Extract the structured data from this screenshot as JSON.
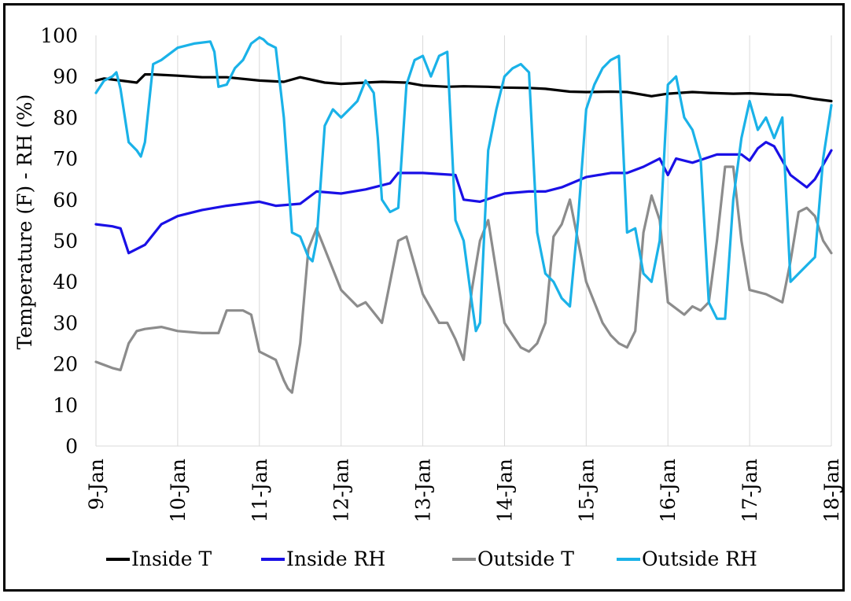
{
  "chart_data": {
    "type": "line",
    "title": "",
    "xlabel": "",
    "ylabel": "Temperature (F) - RH (%)",
    "ylim": [
      0,
      100
    ],
    "yticks": [
      "0",
      "10",
      "20",
      "30",
      "40",
      "50",
      "60",
      "70",
      "80",
      "90",
      "100"
    ],
    "x_tick_labels": [
      "9-Jan",
      "10-Jan",
      "11-Jan",
      "12-Jan",
      "13-Jan",
      "14-Jan",
      "15-Jan",
      "16-Jan",
      "17-Jan",
      "18-Jan"
    ],
    "xlim_days": [
      9,
      18
    ],
    "grid": "vertical",
    "legend": "bottom",
    "series": [
      {
        "name": "Inside T",
        "color": "#000000",
        "x": [
          9.0,
          9.1,
          9.3,
          9.5,
          9.6,
          9.7,
          10.0,
          10.3,
          10.6,
          11.0,
          11.3,
          11.5,
          11.8,
          12.0,
          12.3,
          12.5,
          12.8,
          13.0,
          13.3,
          13.5,
          13.8,
          14.0,
          14.3,
          14.5,
          14.8,
          15.0,
          15.3,
          15.5,
          15.8,
          16.0,
          16.3,
          16.5,
          16.8,
          17.0,
          17.3,
          17.5,
          17.8,
          18.0
        ],
        "y": [
          89,
          89.5,
          89,
          88.5,
          90.5,
          90.5,
          90.2,
          89.8,
          89.8,
          89,
          88.7,
          89.8,
          88.5,
          88.2,
          88.5,
          88.7,
          88.5,
          87.8,
          87.5,
          87.6,
          87.5,
          87.3,
          87.2,
          87.0,
          86.3,
          86.2,
          86.3,
          86.2,
          85.2,
          85.8,
          86.2,
          86.0,
          85.8,
          85.9,
          85.6,
          85.5,
          84.5,
          84.0
        ]
      },
      {
        "name": "Inside RH",
        "color": "#1a10e6",
        "x": [
          9.0,
          9.2,
          9.3,
          9.4,
          9.6,
          9.8,
          10.0,
          10.3,
          10.6,
          11.0,
          11.2,
          11.5,
          11.7,
          12.0,
          12.3,
          12.6,
          12.7,
          12.9,
          13.0,
          13.4,
          13.5,
          13.7,
          14.0,
          14.3,
          14.5,
          14.7,
          15.0,
          15.3,
          15.5,
          15.7,
          15.9,
          16.0,
          16.1,
          16.3,
          16.6,
          16.9,
          17.0,
          17.1,
          17.2,
          17.3,
          17.5,
          17.7,
          17.8,
          18.0
        ],
        "y": [
          54,
          53.5,
          53,
          47,
          49,
          54,
          56,
          57.5,
          58.5,
          59.5,
          58.5,
          59,
          62,
          61.5,
          62.5,
          64,
          66.5,
          66.5,
          66.5,
          66,
          60,
          59.5,
          61.5,
          62,
          62,
          63,
          65.5,
          66.5,
          66.5,
          68,
          70,
          66,
          70,
          69,
          71,
          71,
          69.5,
          72.5,
          74,
          73,
          66,
          63,
          65,
          72
        ]
      },
      {
        "name": "Outside T",
        "color": "#8c8c8c",
        "x": [
          9.0,
          9.2,
          9.3,
          9.4,
          9.5,
          9.6,
          9.8,
          10.0,
          10.3,
          10.5,
          10.6,
          10.8,
          10.9,
          11.0,
          11.2,
          11.3,
          11.35,
          11.4,
          11.5,
          11.6,
          11.7,
          11.8,
          12.0,
          12.2,
          12.3,
          12.5,
          12.6,
          12.7,
          12.8,
          13.0,
          13.2,
          13.3,
          13.4,
          13.5,
          13.6,
          13.7,
          13.8,
          14.0,
          14.2,
          14.3,
          14.4,
          14.5,
          14.6,
          14.7,
          14.8,
          15.0,
          15.2,
          15.3,
          15.4,
          15.5,
          15.6,
          15.7,
          15.8,
          15.9,
          16.0,
          16.2,
          16.3,
          16.4,
          16.5,
          16.6,
          16.7,
          16.8,
          16.9,
          17.0,
          17.2,
          17.3,
          17.4,
          17.5,
          17.6,
          17.7,
          17.8,
          17.9,
          18.0
        ],
        "y": [
          20.5,
          19,
          18.5,
          25,
          28,
          28.5,
          29,
          28,
          27.5,
          27.5,
          33,
          33,
          32,
          23,
          21,
          16,
          14,
          13,
          25,
          48,
          53,
          48,
          38,
          34,
          35,
          30,
          40,
          50,
          51,
          37,
          30,
          30,
          26,
          21,
          38,
          50,
          55,
          30,
          24,
          23,
          25,
          30,
          51,
          54,
          60,
          40,
          30,
          27,
          25,
          24,
          28,
          52,
          61,
          55,
          35,
          32,
          34,
          33,
          35,
          50,
          68,
          68,
          50,
          38,
          37,
          36,
          35,
          45,
          57,
          58,
          56,
          50,
          47
        ]
      },
      {
        "name": "Outside RH",
        "color": "#1ab2e8",
        "x": [
          9.0,
          9.1,
          9.2,
          9.25,
          9.3,
          9.4,
          9.5,
          9.55,
          9.6,
          9.7,
          9.8,
          10.0,
          10.2,
          10.4,
          10.45,
          10.5,
          10.6,
          10.7,
          10.8,
          10.9,
          11.0,
          11.05,
          11.1,
          11.2,
          11.3,
          11.4,
          11.5,
          11.6,
          11.65,
          11.7,
          11.8,
          11.9,
          12.0,
          12.1,
          12.2,
          12.3,
          12.4,
          12.45,
          12.5,
          12.6,
          12.7,
          12.8,
          12.9,
          13.0,
          13.1,
          13.2,
          13.3,
          13.4,
          13.5,
          13.6,
          13.65,
          13.7,
          13.8,
          13.9,
          14.0,
          14.1,
          14.2,
          14.3,
          14.4,
          14.5,
          14.6,
          14.7,
          14.8,
          14.9,
          15.0,
          15.1,
          15.2,
          15.3,
          15.4,
          15.5,
          15.6,
          15.7,
          15.8,
          15.9,
          16.0,
          16.1,
          16.2,
          16.3,
          16.4,
          16.5,
          16.6,
          16.7,
          16.8,
          16.9,
          17.0,
          17.1,
          17.2,
          17.3,
          17.4,
          17.5,
          17.6,
          17.7,
          17.8,
          17.9,
          18.0
        ],
        "y": [
          86,
          89,
          90,
          91,
          87,
          74,
          72,
          70.5,
          74,
          93,
          94,
          97,
          98,
          98.5,
          96,
          87.5,
          88,
          92,
          94,
          98,
          99.5,
          99,
          98,
          97,
          80,
          52,
          51,
          46,
          45,
          50,
          78,
          82,
          80,
          82,
          84,
          89,
          86,
          75,
          60,
          57,
          58,
          88,
          94,
          95,
          90,
          95,
          96,
          55,
          50,
          35,
          28,
          30,
          72,
          82,
          90,
          92,
          93,
          91,
          52,
          42,
          40,
          36,
          34,
          55,
          82,
          88,
          92,
          94,
          95,
          52,
          53,
          42,
          40,
          50,
          88,
          90,
          80,
          77,
          70,
          35,
          31,
          31,
          60,
          75,
          84,
          77,
          80,
          75,
          80,
          40,
          42,
          44,
          46,
          70,
          83
        ]
      }
    ]
  }
}
